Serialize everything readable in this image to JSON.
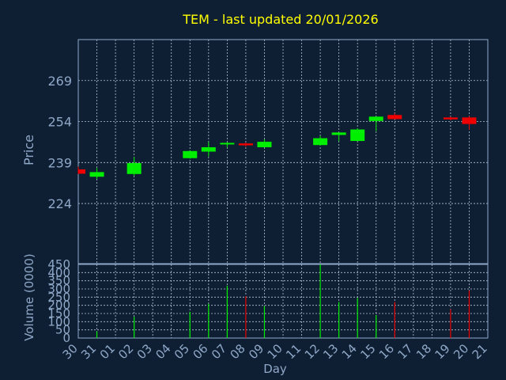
{
  "title": "TEM - last updated 20/01/2026",
  "colors": {
    "background": "#0f1f33",
    "title": "#ffff00",
    "axis_text": "#8fa8c8",
    "frame": "#8fa8c8",
    "grid": "#b8c4d4",
    "up": "#00ee00",
    "down": "#ee0000"
  },
  "chart_data": [
    {
      "type": "candlestick",
      "ylabel": "Price",
      "xlabel": "Day",
      "ylim": [
        202,
        284
      ],
      "yticks": [
        224,
        239,
        254,
        269
      ],
      "grid": true,
      "candles": [
        {
          "day": "30",
          "open": 236.5,
          "high": 237.5,
          "low": 234.8,
          "close": 234.9
        },
        {
          "day": "31",
          "open": 233.8,
          "high": 237.0,
          "low": 233.0,
          "close": 235.5
        },
        {
          "day": "02",
          "open": 234.8,
          "high": 241.0,
          "low": 234.2,
          "close": 238.8
        },
        {
          "day": "05",
          "open": 240.6,
          "high": 243.5,
          "low": 240.4,
          "close": 243.2
        },
        {
          "day": "06",
          "open": 243.0,
          "high": 246.5,
          "low": 241.2,
          "close": 244.6
        },
        {
          "day": "07",
          "open": 245.7,
          "high": 246.4,
          "low": 244.5,
          "close": 246.2
        },
        {
          "day": "08",
          "open": 246.0,
          "high": 246.3,
          "low": 244.8,
          "close": 245.3
        },
        {
          "day": "09",
          "open": 244.6,
          "high": 247.5,
          "low": 244.5,
          "close": 246.6
        },
        {
          "day": "12",
          "open": 245.4,
          "high": 248.8,
          "low": 245.2,
          "close": 247.9
        },
        {
          "day": "13",
          "open": 249.1,
          "high": 250.0,
          "low": 246.8,
          "close": 250.0
        },
        {
          "day": "14",
          "open": 246.9,
          "high": 251.5,
          "low": 246.8,
          "close": 251.1
        },
        {
          "day": "15",
          "open": 254.2,
          "high": 255.8,
          "low": 250.5,
          "close": 255.8
        },
        {
          "day": "16",
          "open": 256.4,
          "high": 257.0,
          "low": 254.8,
          "close": 254.9
        },
        {
          "day": "19",
          "open": 255.5,
          "high": 255.8,
          "low": 254.5,
          "close": 254.8
        },
        {
          "day": "20",
          "open": 255.5,
          "high": 256.0,
          "low": 251.0,
          "close": 253.1
        }
      ]
    },
    {
      "type": "bar",
      "ylabel": "Volume (0000)",
      "ylim": [
        0,
        450
      ],
      "yticks": [
        0,
        50,
        100,
        150,
        200,
        250,
        300,
        350,
        400,
        450
      ],
      "grid": true,
      "bars": [
        {
          "day": "31",
          "value": 40,
          "direction": "up"
        },
        {
          "day": "02",
          "value": 130,
          "direction": "up"
        },
        {
          "day": "05",
          "value": 160,
          "direction": "up"
        },
        {
          "day": "06",
          "value": 210,
          "direction": "up"
        },
        {
          "day": "07",
          "value": 320,
          "direction": "up"
        },
        {
          "day": "08",
          "value": 255,
          "direction": "down"
        },
        {
          "day": "09",
          "value": 195,
          "direction": "up"
        },
        {
          "day": "12",
          "value": 450,
          "direction": "up"
        },
        {
          "day": "13",
          "value": 220,
          "direction": "up"
        },
        {
          "day": "14",
          "value": 245,
          "direction": "up"
        },
        {
          "day": "15",
          "value": 140,
          "direction": "up"
        },
        {
          "day": "16",
          "value": 220,
          "direction": "down"
        },
        {
          "day": "19",
          "value": 175,
          "direction": "down"
        },
        {
          "day": "20",
          "value": 290,
          "direction": "down"
        }
      ]
    }
  ],
  "x_axis": {
    "label": "Day",
    "ticks": [
      "30",
      "31",
      "01",
      "02",
      "03",
      "04",
      "05",
      "06",
      "07",
      "08",
      "09",
      "10",
      "11",
      "12",
      "13",
      "14",
      "15",
      "16",
      "17",
      "18",
      "19",
      "20",
      "21"
    ]
  }
}
